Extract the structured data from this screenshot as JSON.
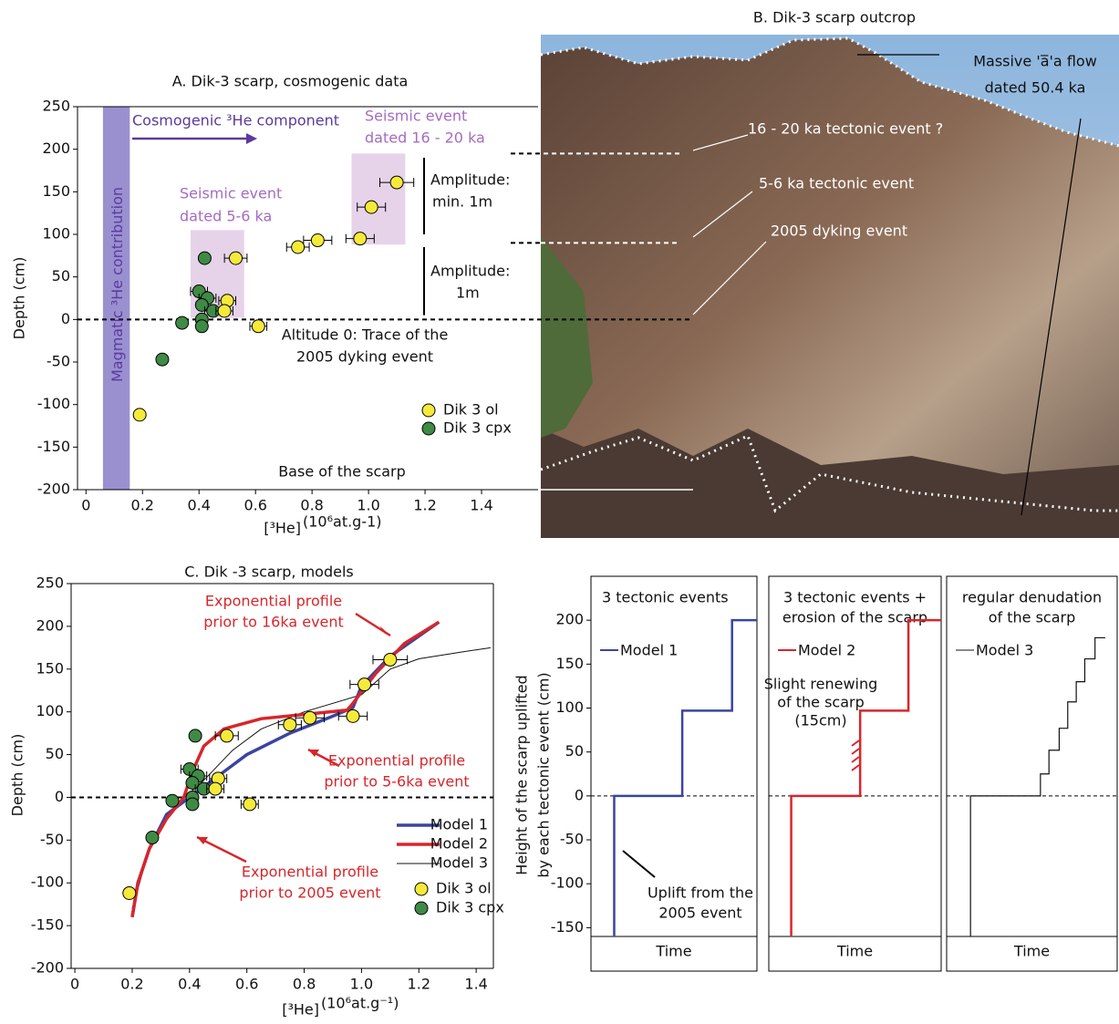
{
  "chart_data": [
    {
      "type": "scatter",
      "title": "A. Dik-3 scarp, cosmogenic data",
      "x_label": "[³He]",
      "x_unit": "(10⁶at.g-1)",
      "y_label": "Depth (cm)",
      "xlim": [
        -0.03,
        1.6
      ],
      "ylim": [
        -200,
        250
      ],
      "xticks": [
        0,
        0.2,
        0.4,
        0.6,
        0.8,
        {
          "value": 1,
          "label": "1.0"
        },
        1.2,
        1.4
      ],
      "yticks": [
        250,
        200,
        150,
        100,
        50,
        0,
        -50,
        -100,
        -150,
        -200
      ],
      "series": [
        {
          "name": "Dik 3 ol",
          "color": "#f5ea3a",
          "x": [
            1.1,
            1.01,
            0.97,
            0.82,
            0.75,
            0.53,
            0.5,
            0.49,
            0.61,
            0.19
          ],
          "values": [
            161,
            132,
            95,
            93,
            85,
            72,
            22,
            10,
            -8,
            -112
          ],
          "xerr": [
            0.06,
            0.05,
            0.05,
            0.05,
            0.04,
            0.04,
            0.03,
            0.03,
            0.03,
            null
          ]
        },
        {
          "name": "Dik 3 cpx",
          "color": "#3f8a45",
          "x": [
            0.42,
            0.4,
            0.43,
            0.41,
            0.45,
            0.41,
            0.34,
            0.41,
            0.27
          ],
          "values": [
            72,
            33,
            25,
            17,
            10,
            0,
            -4,
            -8,
            -47
          ],
          "xerr": [
            null,
            0.03,
            0.03,
            null,
            0.03,
            null,
            null,
            null,
            null
          ]
        }
      ],
      "annotations": [
        "Cosmogenic ³He component",
        "Magmatic ³He contribution",
        "Seismic event",
        "dated 16 - 20 ka",
        "Seismic event",
        "dated 5-6 ka",
        "Amplitude:",
        "min. 1m",
        "Amplitude:",
        "1m",
        "Altitude 0: Trace of the",
        "2005 dyking event",
        "Base of the scarp"
      ]
    },
    {
      "type": "line",
      "title": "C. Dik -3 scarp, models",
      "x_label": "[³He]",
      "x_unit": "(10⁶at.g⁻¹)",
      "y_label": "Depth  (cm)",
      "xlim": [
        -0.013,
        1.46
      ],
      "ylim": [
        -200,
        250
      ],
      "xticks": [
        0,
        0.2,
        0.4,
        0.6,
        0.8,
        {
          "value": 1,
          "label": "1.0"
        },
        1.2,
        1.4
      ],
      "yticks": [
        250,
        200,
        150,
        100,
        50,
        0,
        -50,
        -100,
        -150,
        -200
      ],
      "series": [
        {
          "name": "Model 1",
          "color": "#3b44a0",
          "x": [
            0.2,
            0.22,
            0.26,
            0.32,
            0.4,
            0.5,
            0.6,
            0.75,
            0.9,
            0.97,
            1.0,
            1.1,
            1.27
          ],
          "values": [
            -140,
            -100,
            -60,
            -20,
            0,
            25,
            50,
            75,
            95,
            105,
            130,
            165,
            205
          ]
        },
        {
          "name": "Model 2",
          "color": "#d7262b",
          "x": [
            0.2,
            0.22,
            0.26,
            0.32,
            0.38,
            0.41,
            0.45,
            0.52,
            0.65,
            0.8,
            0.95,
            0.97,
            1.05,
            1.15,
            1.27
          ],
          "values": [
            -140,
            -100,
            -60,
            -25,
            0,
            30,
            60,
            80,
            92,
            97,
            102,
            110,
            145,
            180,
            205
          ]
        },
        {
          "name": "Model 3",
          "color": "#111111",
          "x": [
            0.2,
            0.26,
            0.35,
            0.45,
            0.55,
            0.65,
            0.8,
            1.0,
            1.1,
            1.2,
            1.35,
            1.45
          ],
          "values": [
            -130,
            -60,
            -10,
            20,
            55,
            80,
            100,
            120,
            150,
            162,
            170,
            175
          ]
        }
      ],
      "annotations": [
        "Exponential profile",
        "prior to 16ka event",
        "Exponential profile",
        "prior to 5-6ka event",
        "Exponential profile",
        "prior to 2005 event"
      ]
    },
    {
      "type": "line",
      "title": [
        "3 tectonic events"
      ],
      "x_label": "Time",
      "y_label": [
        "Height of the scarp uplifted",
        "by each tectonic event (cm)"
      ],
      "xlim": [
        0,
        1
      ],
      "ylim": [
        -160,
        250
      ],
      "yticks": [
        200,
        150,
        100,
        50,
        0,
        -50,
        -100,
        -150
      ],
      "series": [
        {
          "name": "Model 1",
          "color": "#3b44a0",
          "x": [
            0.14,
            0.14,
            0.55,
            0.55,
            0.85,
            0.85,
            1.0
          ],
          "values": [
            -160,
            0,
            0,
            97,
            97,
            200,
            200
          ]
        }
      ],
      "annotations": [
        "Uplift from the",
        "2005 event"
      ]
    },
    {
      "type": "line",
      "title": [
        "3 tectonic events +",
        "erosion of the scarp"
      ],
      "x_label": "Time",
      "xlim": [
        0,
        1
      ],
      "ylim": [
        -160,
        250
      ],
      "series": [
        {
          "name": "Model 2",
          "color": "#d7262b",
          "x": [
            0.13,
            0.13,
            0.53,
            0.53,
            0.81,
            0.81,
            1.0
          ],
          "values": [
            -160,
            0,
            0,
            97,
            97,
            200,
            200
          ]
        }
      ],
      "annotations": [
        "Slight renewing",
        "of the scarp",
        "(15cm)"
      ]
    },
    {
      "type": "line",
      "title": [
        "regular denudation",
        "of the scarp"
      ],
      "x_label": "Time",
      "xlim": [
        0,
        1
      ],
      "ylim": [
        -160,
        250
      ],
      "series": [
        {
          "name": "Model 3",
          "color": "#111111",
          "x": [
            0.14,
            0.14,
            0.55,
            0.55,
            0.6,
            0.6,
            0.66,
            0.66,
            0.71,
            0.71,
            0.76,
            0.76,
            0.81,
            0.81,
            0.87,
            0.87,
            0.93
          ],
          "values": [
            -160,
            0,
            0,
            25,
            25,
            52,
            52,
            77,
            77,
            107,
            107,
            130,
            130,
            156,
            156,
            180,
            180
          ]
        }
      ],
      "annotations": []
    }
  ],
  "photo": {
    "title": "B. Dik-3 scarp outcrop",
    "labels": [
      "Massive 'a̅'a flow",
      "dated 50.4 ka",
      "16 - 20 ka tectonic event ?",
      "5-6 ka tectonic event",
      "2005 dyking event"
    ]
  }
}
